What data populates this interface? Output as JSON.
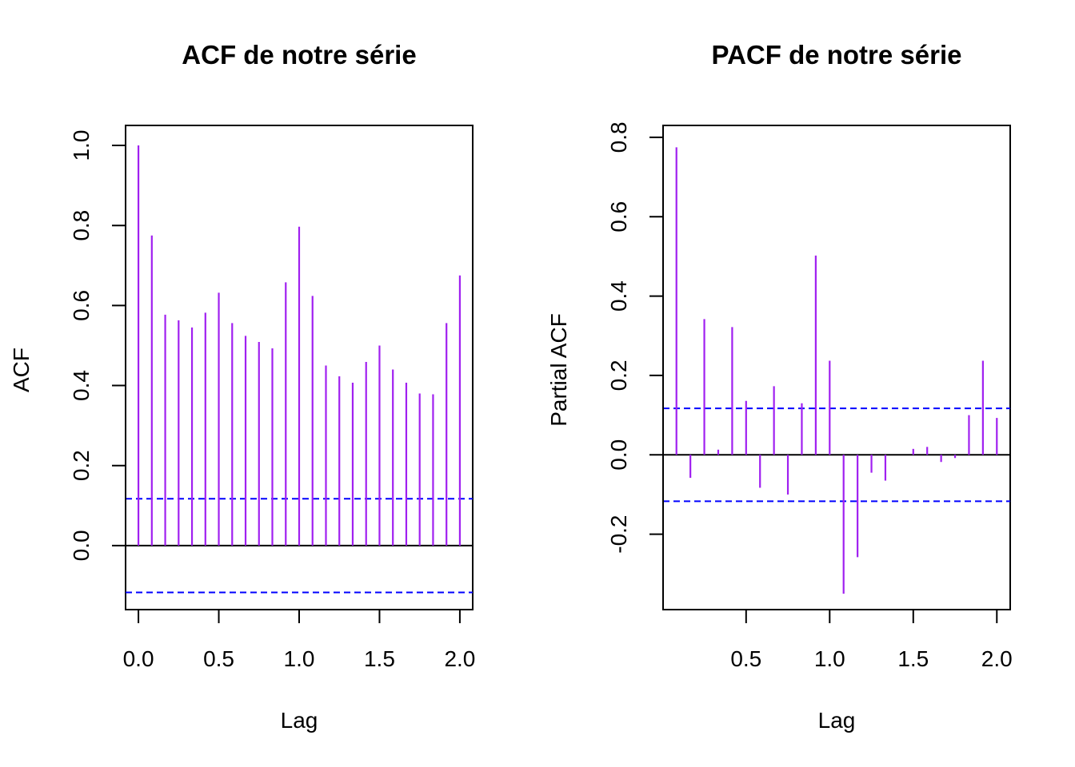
{
  "colors": {
    "bar": "#a020f0",
    "ci": "#0000ff",
    "axis": "#000000"
  },
  "chart_data": [
    {
      "type": "bar",
      "title": "ACF de notre série",
      "xlabel": "Lag",
      "ylabel": "ACF",
      "xlim": [
        -0.08,
        2.08
      ],
      "ylim": [
        -0.16,
        1.05
      ],
      "xticks": [
        "0.0",
        "0.5",
        "1.0",
        "1.5",
        "2.0"
      ],
      "yticks": [
        "0.0",
        "0.2",
        "0.4",
        "0.6",
        "0.8",
        "1.0"
      ],
      "ci": 0.117,
      "lags": [
        0.0,
        0.0833,
        0.1667,
        0.25,
        0.3333,
        0.4167,
        0.5,
        0.5833,
        0.6667,
        0.75,
        0.8333,
        0.9167,
        1.0,
        1.0833,
        1.1667,
        1.25,
        1.3333,
        1.4167,
        1.5,
        1.5833,
        1.6667,
        1.75,
        1.8333,
        1.9167,
        2.0
      ],
      "values": [
        1.0,
        0.775,
        0.577,
        0.563,
        0.545,
        0.582,
        0.632,
        0.556,
        0.524,
        0.509,
        0.493,
        0.658,
        0.797,
        0.624,
        0.45,
        0.423,
        0.407,
        0.459,
        0.5,
        0.44,
        0.407,
        0.38,
        0.378,
        0.556,
        0.675
      ]
    },
    {
      "type": "bar",
      "title": "PACF de notre série",
      "xlabel": "Lag",
      "ylabel": "Partial ACF",
      "xlim": [
        0.0033,
        2.08
      ],
      "ylim": [
        -0.39,
        0.83
      ],
      "xticks": [
        "0.5",
        "1.0",
        "1.5",
        "2.0"
      ],
      "yticks": [
        "-0.2",
        "0.0",
        "0.2",
        "0.4",
        "0.6",
        "0.8"
      ],
      "ci": 0.117,
      "lags": [
        0.0833,
        0.1667,
        0.25,
        0.3333,
        0.4167,
        0.5,
        0.5833,
        0.6667,
        0.75,
        0.8333,
        0.9167,
        1.0,
        1.0833,
        1.1667,
        1.25,
        1.3333,
        1.4167,
        1.5,
        1.5833,
        1.6667,
        1.75,
        1.8333,
        1.9167,
        2.0
      ],
      "values": [
        0.775,
        -0.058,
        0.342,
        0.013,
        0.322,
        0.136,
        -0.083,
        0.173,
        -0.1,
        0.13,
        0.502,
        0.237,
        -0.35,
        -0.258,
        -0.045,
        -0.065,
        0.0,
        0.015,
        0.02,
        -0.018,
        -0.008,
        0.1,
        0.237,
        0.093
      ]
    }
  ]
}
